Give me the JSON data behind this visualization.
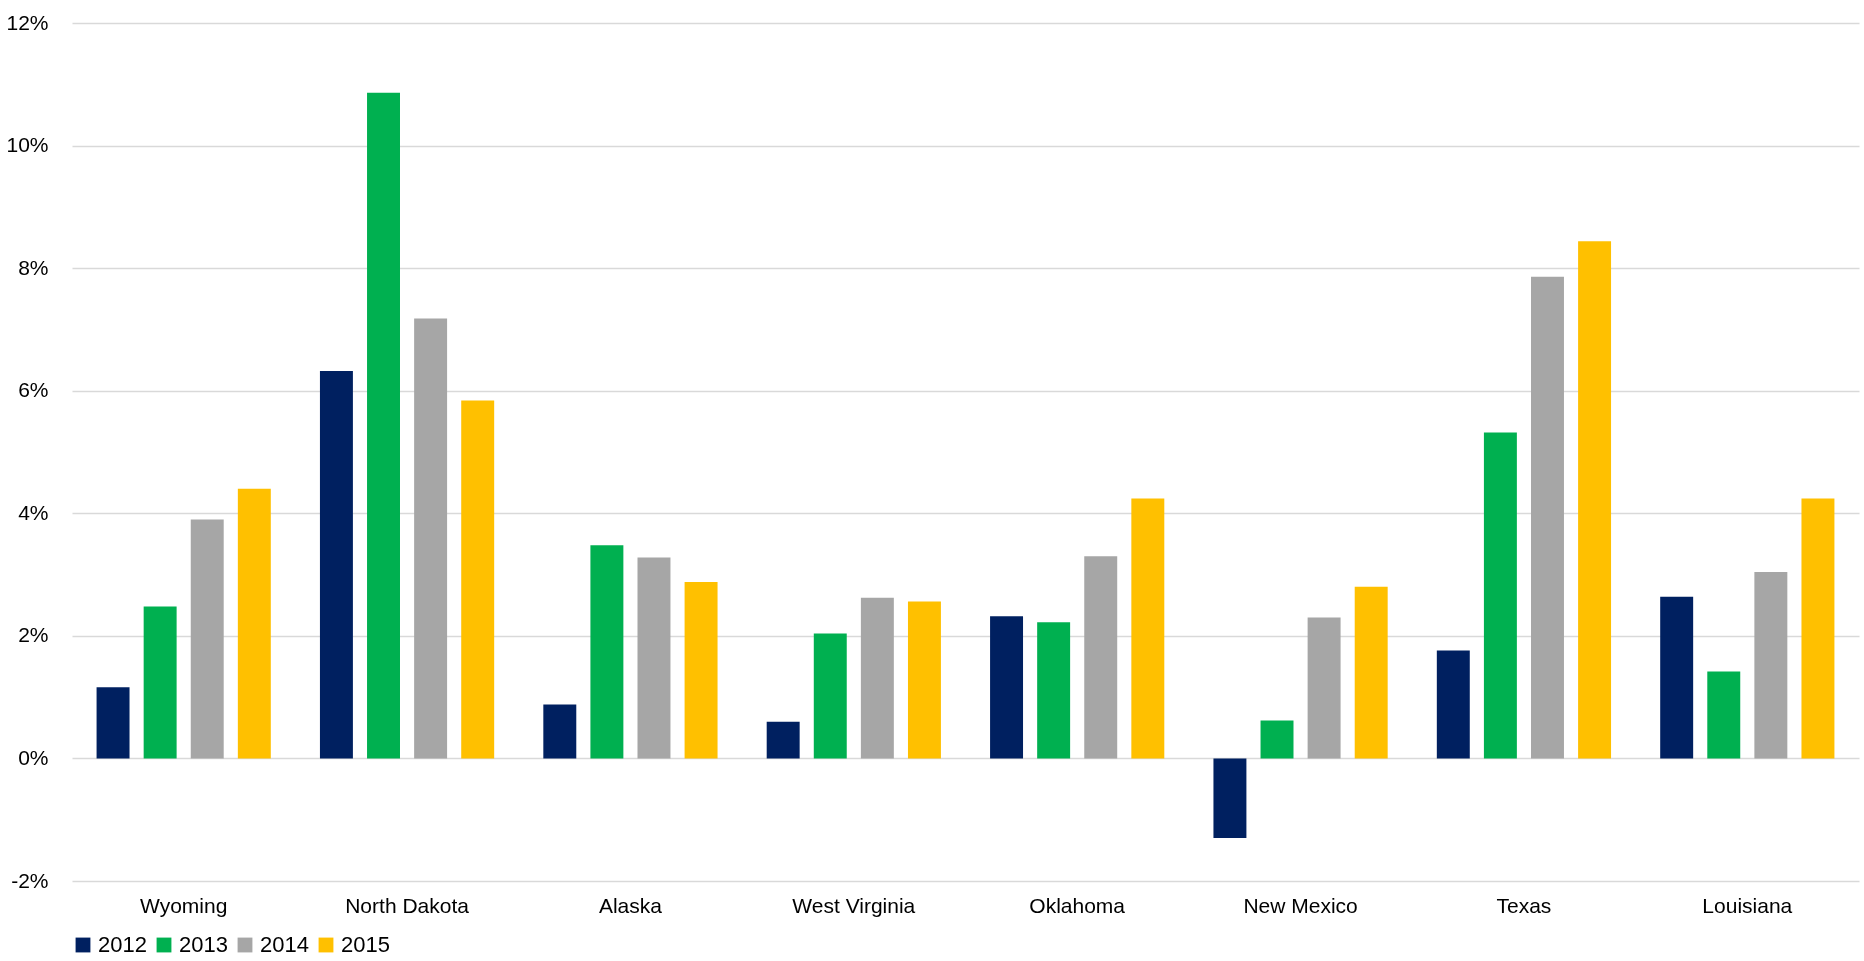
{
  "chart_data": {
    "type": "bar",
    "categories": [
      "Wyoming",
      "North Dakota",
      "Alaska",
      "West Virginia",
      "Oklahoma",
      "New Mexico",
      "Texas",
      "Louisiana"
    ],
    "series": [
      {
        "name": "2012",
        "color": "#002060",
        "values": [
          1.16,
          6.32,
          0.88,
          0.6,
          2.32,
          -1.3,
          1.76,
          2.64
        ]
      },
      {
        "name": "2013",
        "color": "#00b050",
        "values": [
          2.48,
          10.86,
          3.48,
          2.04,
          2.22,
          0.62,
          5.32,
          1.42
        ]
      },
      {
        "name": "2014",
        "color": "#a6a6a6",
        "values": [
          3.9,
          7.18,
          3.28,
          2.62,
          3.3,
          2.3,
          7.86,
          3.04
        ]
      },
      {
        "name": "2015",
        "color": "#ffc000",
        "values": [
          4.4,
          5.84,
          2.88,
          2.56,
          4.24,
          2.8,
          8.44,
          4.24
        ]
      }
    ],
    "ylim": [
      -2,
      12
    ],
    "yticks": [
      {
        "value": -2,
        "label": "-2%"
      },
      {
        "value": 0,
        "label": "0%"
      },
      {
        "value": 2,
        "label": "2%"
      },
      {
        "value": 4,
        "label": "4%"
      },
      {
        "value": 6,
        "label": "6%"
      },
      {
        "value": 8,
        "label": "8%"
      },
      {
        "value": 10,
        "label": "10%"
      },
      {
        "value": 12,
        "label": "12%"
      }
    ],
    "grid": "y",
    "legend": "bottom"
  }
}
